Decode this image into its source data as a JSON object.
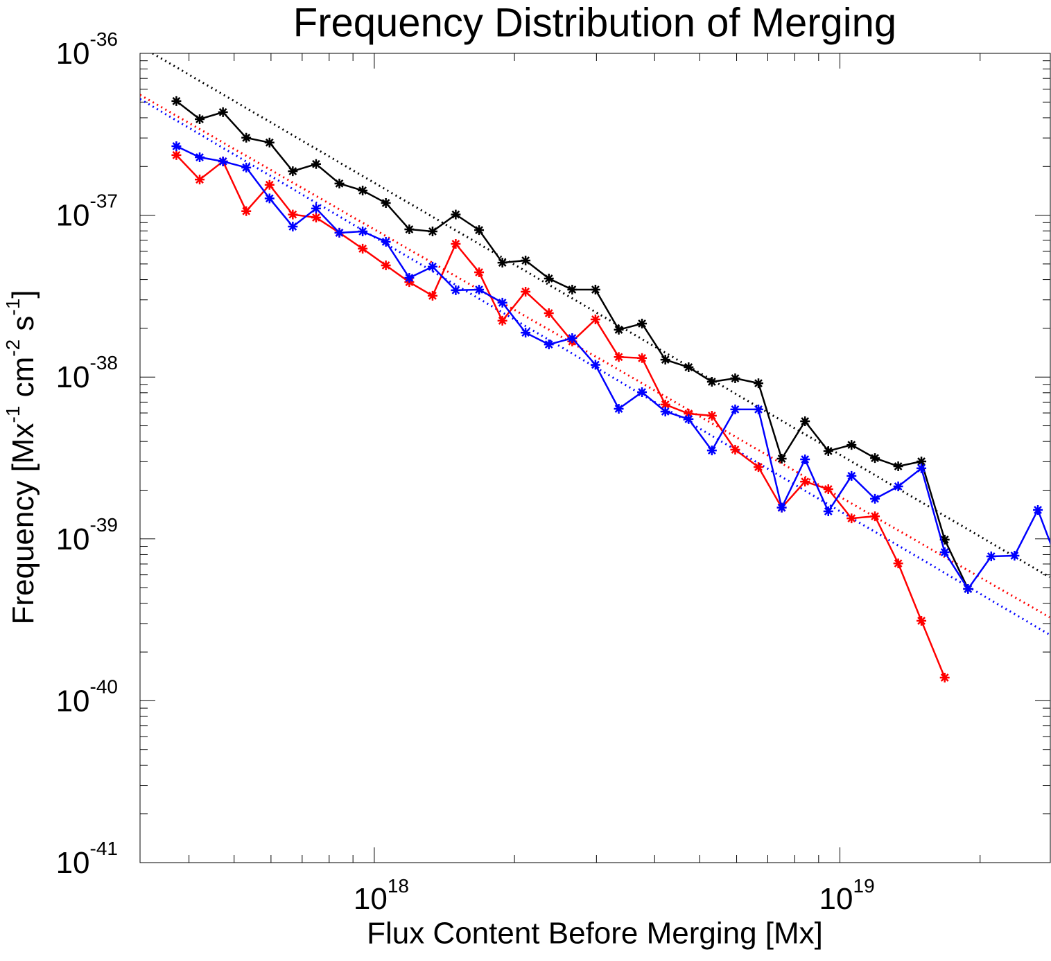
{
  "chart_data": {
    "type": "line",
    "title": "Frequency Distribution of Merging",
    "xlabel": "Flux Content Before Merging [Mx]",
    "ylabel": [
      {
        "text": "Frequency [Mx"
      },
      {
        "text": "-1",
        "sup": true
      },
      {
        "text": " cm"
      },
      {
        "text": "-2",
        "sup": true
      },
      {
        "text": " s"
      },
      {
        "text": "-1",
        "sup": true
      },
      {
        "text": "]"
      }
    ],
    "xlog": true,
    "ylog": true,
    "minor_ticks": true,
    "box_ticks": true,
    "xlim": [
      3.14e+17,
      2.83e+19
    ],
    "ylim": [
      1e-41,
      1e-36
    ],
    "xticks": [
      {
        "value": 1e+18,
        "label": "10",
        "exponent": "18"
      },
      {
        "value": 1e+19,
        "label": "10",
        "exponent": "19"
      }
    ],
    "yticks": [
      {
        "value": 1e-41,
        "label": "10",
        "exponent": "-41"
      },
      {
        "value": 1e-40,
        "label": "10",
        "exponent": "-40"
      },
      {
        "value": 1e-39,
        "label": "10",
        "exponent": "-39"
      },
      {
        "value": 1e-38,
        "label": "10",
        "exponent": "-38"
      },
      {
        "value": 1e-37,
        "label": "10",
        "exponent": "-37"
      },
      {
        "value": 1e-36,
        "label": "10",
        "exponent": "-36"
      }
    ],
    "x": [
      3.758e+17,
      4.217e+17,
      4.732e+17,
      5.309e+17,
      5.957e+17,
      6.683e+17,
      7.499e+17,
      8.414e+17,
      9.441e+17,
      1.059e+18,
      1.189e+18,
      1.334e+18,
      1.496e+18,
      1.679e+18,
      1.884e+18,
      2.113e+18,
      2.371e+18,
      2.661e+18,
      2.985e+18,
      3.35e+18,
      3.758e+18,
      4.217e+18,
      4.732e+18,
      5.309e+18,
      5.957e+18,
      6.683e+18,
      7.499e+18,
      8.414e+18,
      9.441e+18,
      1.059e+19,
      1.189e+19,
      1.334e+19,
      1.496e+19,
      1.679e+19,
      1.884e+19,
      2.113e+19,
      2.371e+19,
      2.661e+19,
      2.985e+19
    ],
    "series": [
      {
        "color": "#000000",
        "values": [
          5.07e-37,
          3.92e-37,
          4.33e-37,
          3.01e-37,
          2.81e-37,
          1.87e-37,
          2.07e-37,
          1.57e-37,
          1.42e-37,
          1.19e-37,
          8.18e-38,
          7.94e-38,
          1.01e-37,
          8.09e-38,
          5.09e-38,
          5.25e-38,
          4.06e-38,
          3.47e-38,
          3.47e-38,
          1.96e-38,
          2.14e-38,
          1.28e-38,
          1.15e-38,
          9.35e-39,
          9.82e-39,
          9.16e-39,
          3.13e-39,
          5.33e-39,
          3.49e-39,
          3.81e-39,
          3.16e-39,
          2.81e-39,
          3.01e-39,
          9.89e-40,
          4.91e-40,
          null,
          null,
          null,
          null
        ]
      },
      {
        "color": "#ff0000",
        "values": [
          2.35e-37,
          1.66e-37,
          2.15e-37,
          1.06e-37,
          1.54e-37,
          1.01e-37,
          9.67e-38,
          7.79e-38,
          6.21e-38,
          4.9e-38,
          3.86e-38,
          3.18e-38,
          6.65e-38,
          4.44e-38,
          2.23e-38,
          3.37e-38,
          2.48e-38,
          1.66e-38,
          2.27e-38,
          1.33e-38,
          1.31e-38,
          6.76e-39,
          5.94e-39,
          5.77e-39,
          3.56e-39,
          2.78e-39,
          1.56e-39,
          2.26e-39,
          2.03e-39,
          1.34e-39,
          1.38e-39,
          7.06e-40,
          3.12e-40,
          1.39e-40,
          null,
          null,
          null,
          null,
          null
        ]
      },
      {
        "color": "#0000ff",
        "values": [
          2.67e-37,
          2.28e-37,
          2.15e-37,
          1.97e-37,
          1.27e-37,
          8.51e-38,
          1.1e-37,
          7.79e-38,
          7.94e-38,
          6.85e-38,
          4.1e-38,
          4.81e-38,
          3.44e-38,
          3.47e-38,
          2.88e-38,
          1.88e-38,
          1.59e-38,
          1.74e-38,
          1.19e-38,
          6.37e-39,
          8.07e-39,
          6.12e-39,
          5.5e-39,
          3.52e-39,
          6.31e-39,
          6.31e-39,
          1.56e-39,
          3.1e-39,
          1.48e-39,
          2.45e-39,
          1.77e-39,
          2.11e-39,
          2.73e-39,
          8.28e-40,
          4.91e-40,
          7.8e-40,
          7.88e-40,
          1.51e-39,
          6.3e-40
        ]
      }
    ],
    "fits": [
      {
        "color": "#000000",
        "x": [
          3.34e+17,
          2.82e+19
        ],
        "values": [
          1e-36,
          5.81e-40
        ]
      },
      {
        "color": "#ff0000",
        "x": [
          3.14e+17,
          2.82e+19
        ],
        "values": [
          5.54e-37,
          3.28e-40
        ]
      },
      {
        "color": "#0000ff",
        "x": [
          3.14e+17,
          2.82e+19
        ],
        "values": [
          5.22e-37,
          2.56e-40
        ]
      }
    ]
  }
}
